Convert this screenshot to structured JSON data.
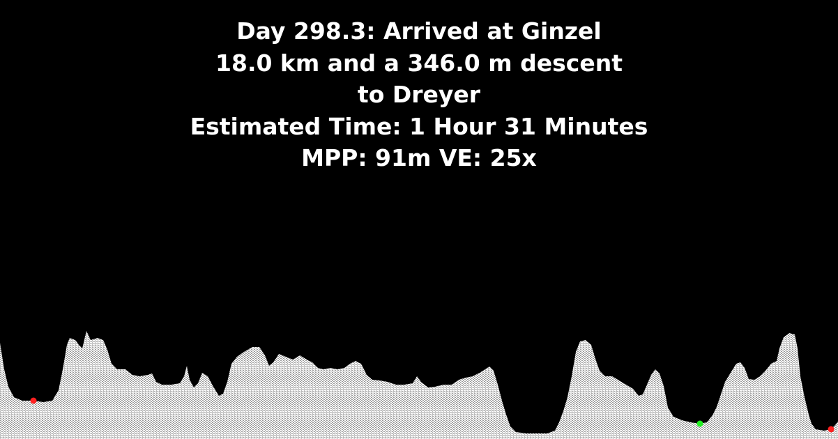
{
  "status": {
    "title": "Day 298.3: Arrived at Ginzel",
    "distance_line": "18.0 km and a 346.0 m descent",
    "destination_line": "to Dreyer",
    "estimate_line": "Estimated Time: 1 Hour 31 Minutes",
    "scale_line": "MPP: 91m VE: 25x"
  },
  "profile": {
    "terrain_fill": "#d8d8d8",
    "sky_color": "#000000",
    "markers": [
      {
        "name": "waypoint-marker-start",
        "color": "#ff2020"
      },
      {
        "name": "current-position-marker",
        "color": "#22ee22"
      },
      {
        "name": "waypoint-marker-end",
        "color": "#ff2020"
      }
    ]
  }
}
